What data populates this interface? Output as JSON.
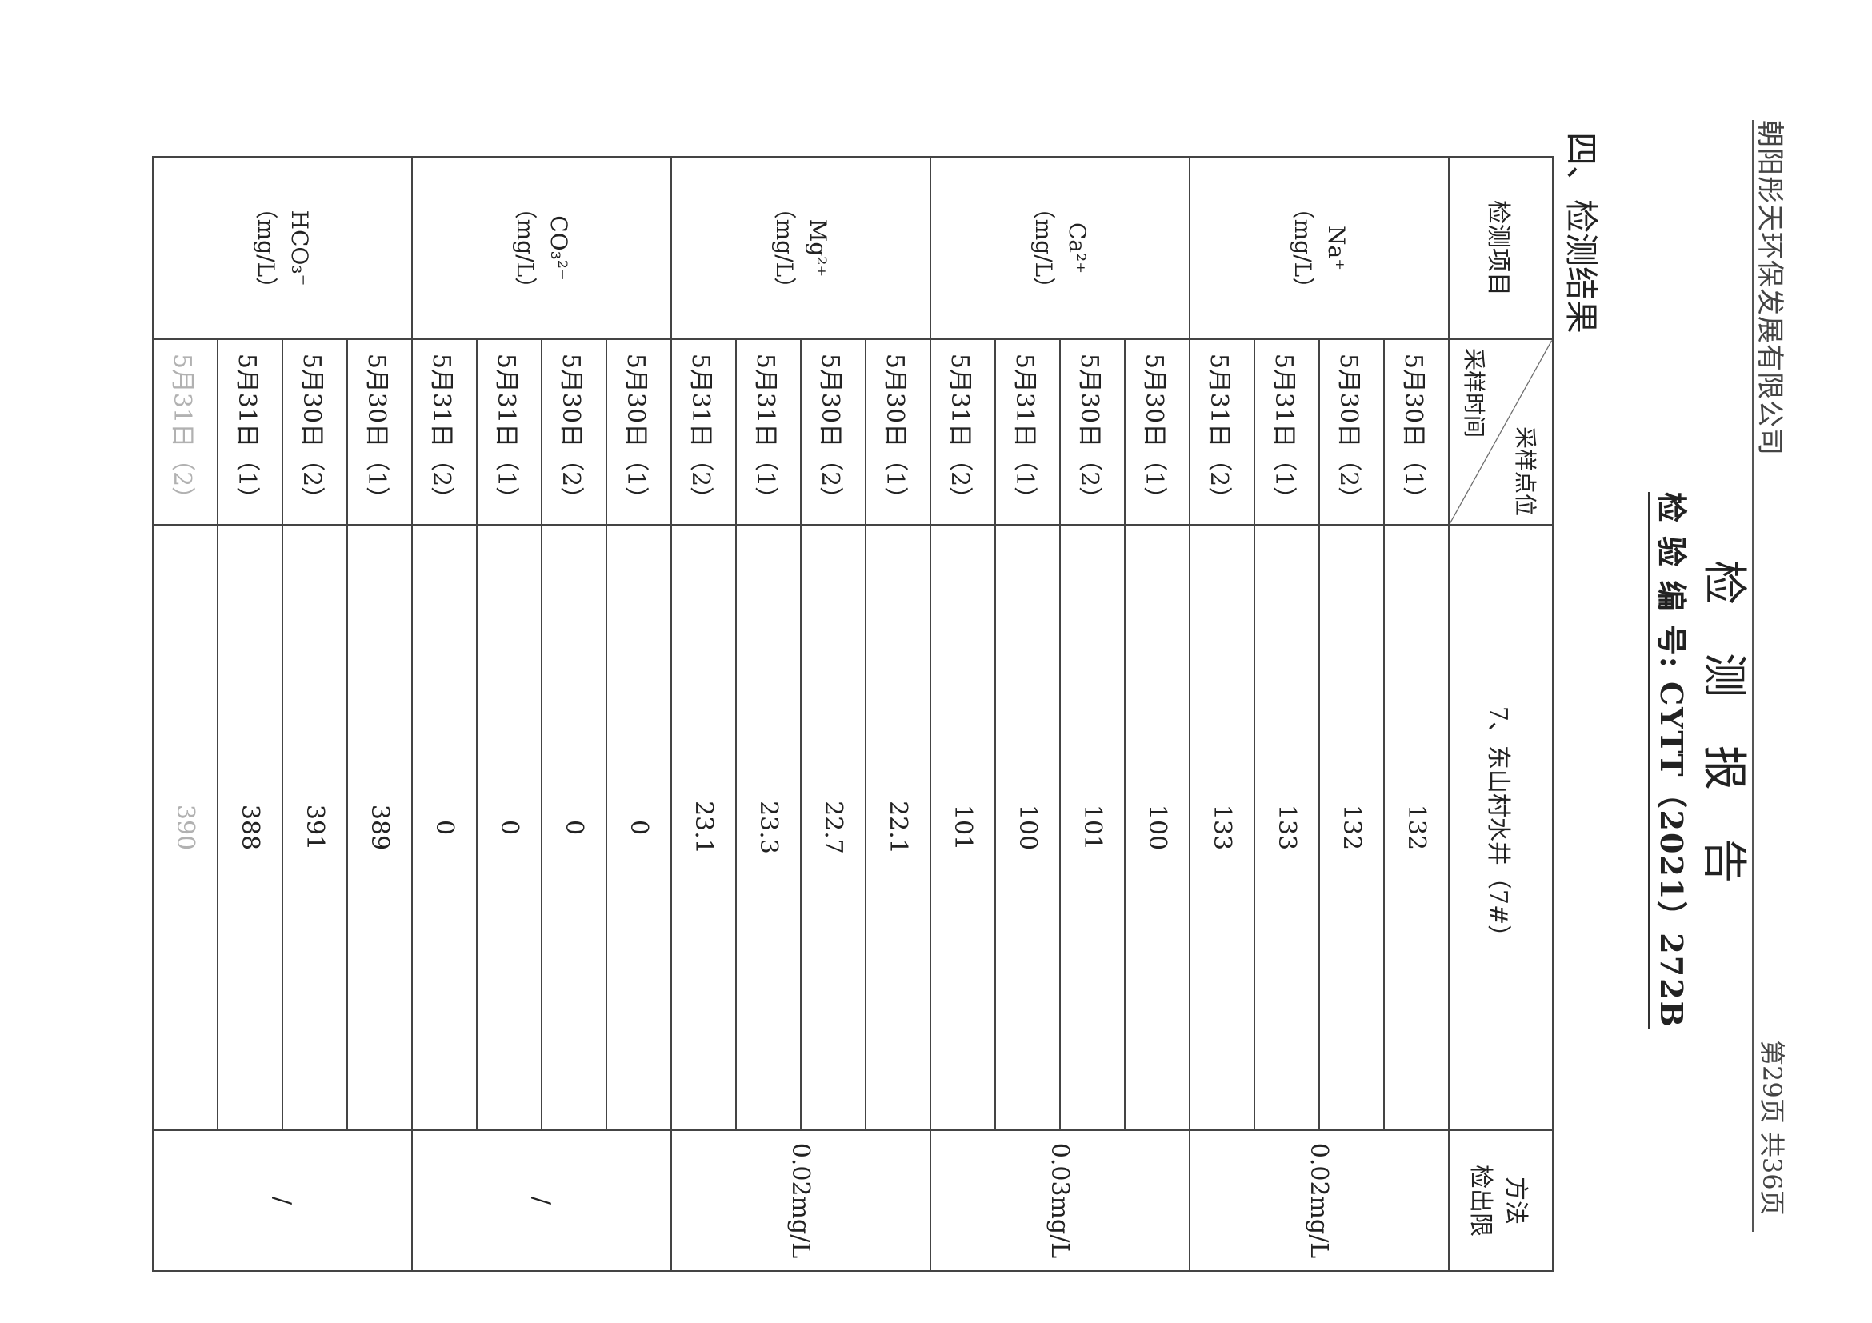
{
  "header": {
    "company": "朝阳彤天环保发展有限公司",
    "page_info": "第29页  共36页",
    "title": "检测报告",
    "report_no": "检 验 编 号: CYTT（2021）272B"
  },
  "section_title": "四、检测结果",
  "table": {
    "col_item": "检测项目",
    "col_site": "采样点位",
    "col_time": "采样时间",
    "col_method": "方法\n检出限",
    "site_name": "7、东山村水井（7#）",
    "groups": [
      {
        "item": "Na⁺",
        "unit": "（mg/L）",
        "limit": "0.02mg/L",
        "rows": [
          [
            "5月30日（1）",
            "132"
          ],
          [
            "5月30日（2）",
            "132"
          ],
          [
            "5月31日（1）",
            "133"
          ],
          [
            "5月31日（2）",
            "133"
          ]
        ]
      },
      {
        "item": "Ca²⁺",
        "unit": "（mg/L）",
        "limit": "0.03mg/L",
        "rows": [
          [
            "5月30日（1）",
            "100"
          ],
          [
            "5月30日（2）",
            "101"
          ],
          [
            "5月31日（1）",
            "100"
          ],
          [
            "5月31日（2）",
            "101"
          ]
        ]
      },
      {
        "item": "Mg²⁺",
        "unit": "（mg/L）",
        "limit": "0.02mg/L",
        "rows": [
          [
            "5月30日（1）",
            "22.1"
          ],
          [
            "5月30日（2）",
            "22.7"
          ],
          [
            "5月31日（1）",
            "23.3"
          ],
          [
            "5月31日（2）",
            "23.1"
          ]
        ]
      },
      {
        "item": "CO₃²⁻",
        "unit": "（mg/L）",
        "limit": "/",
        "rows": [
          [
            "5月30日（1）",
            "0"
          ],
          [
            "5月30日（2）",
            "0"
          ],
          [
            "5月31日（1）",
            "0"
          ],
          [
            "5月31日（2）",
            "0"
          ]
        ]
      },
      {
        "item": "HCO₃⁻",
        "unit": "（mg/L）",
        "limit": "/",
        "rows": [
          [
            "5月30日（1）",
            "389"
          ],
          [
            "5月30日（2）",
            "391"
          ],
          [
            "5月31日（1）",
            "388"
          ],
          [
            "5月31日（2）",
            "390"
          ]
        ]
      }
    ]
  }
}
